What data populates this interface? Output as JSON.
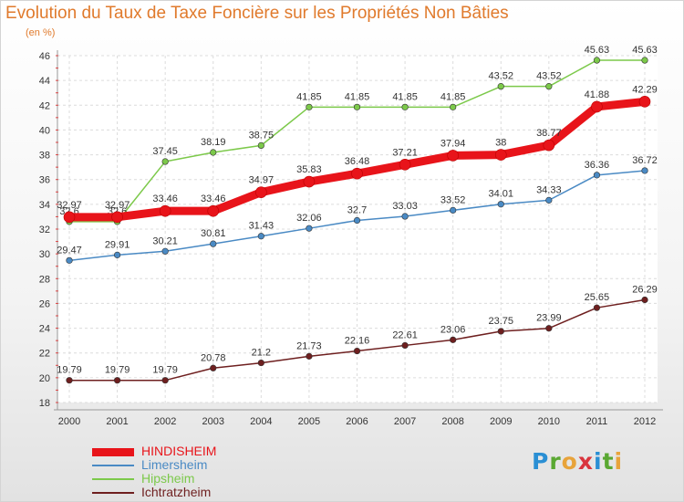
{
  "title": "Evolution du Taux de Taxe Foncière sur les Propriétés Non Bâties",
  "subtitle": "(en %)",
  "logo": [
    "P",
    "r",
    "o",
    "x",
    "i",
    "t",
    "i"
  ],
  "logo_colors": [
    "#2a8fd4",
    "#5aa832",
    "#e8a33a",
    "#d9343d",
    "#2a8fd4",
    "#5aa832",
    "#e8a33a"
  ],
  "chart_data": {
    "type": "line",
    "xlabel": "",
    "ylabel": "",
    "x": [
      "2000",
      "2001",
      "2002",
      "2003",
      "2004",
      "2005",
      "2006",
      "2007",
      "2008",
      "2009",
      "2010",
      "2011",
      "2012"
    ],
    "ylim": [
      18,
      46
    ],
    "yticks": [
      18,
      20,
      22,
      24,
      26,
      28,
      30,
      32,
      34,
      36,
      38,
      40,
      42,
      44,
      46
    ],
    "grid": true,
    "legend_placement": "bottom-left",
    "series": [
      {
        "name": "Ichtratzheim",
        "color": "#6e1f1f",
        "values": [
          19.79,
          19.79,
          19.79,
          20.78,
          21.2,
          21.73,
          22.16,
          22.61,
          23.06,
          23.75,
          23.99,
          25.65,
          26.29
        ],
        "labels": [
          "19.79",
          "19.79",
          "19.79",
          "20.78",
          "21.2",
          "21.73",
          "22.16",
          "22.61",
          "23.06",
          "23.75",
          "23.99",
          "25.65",
          "26.29"
        ]
      },
      {
        "name": "Limersheim",
        "color": "#4a8ac4",
        "values": [
          29.47,
          29.91,
          30.21,
          30.81,
          31.43,
          32.06,
          32.7,
          33.03,
          33.52,
          34.01,
          34.33,
          36.36,
          36.72
        ],
        "labels": [
          "29.47",
          "29.91",
          "30.21",
          "30.81",
          "31.43",
          "32.06",
          "32.7",
          "33.03",
          "33.52",
          "34.01",
          "34.33",
          "36.36",
          "36.72"
        ]
      },
      {
        "name": "Hipsheim",
        "color": "#7cc94a",
        "values": [
          32.6,
          32.6,
          37.45,
          38.19,
          38.75,
          41.85,
          41.85,
          41.85,
          41.85,
          43.52,
          43.52,
          45.63,
          45.63
        ],
        "labels": [
          "32.6",
          "32.6",
          "37.45",
          "38.19",
          "38.75",
          "41.85",
          "41.85",
          "41.85",
          "41.85",
          "43.52",
          "43.52",
          "45.63",
          "45.63"
        ]
      },
      {
        "name": "HINDISHEIM",
        "color": "#e8141a",
        "values": [
          32.97,
          32.97,
          33.46,
          33.46,
          34.97,
          35.83,
          36.48,
          37.21,
          37.94,
          38,
          38.77,
          41.88,
          42.29
        ],
        "labels": [
          "32.97",
          "32.97",
          "33.46",
          "33.46",
          "34.97",
          "35.83",
          "36.48",
          "37.21",
          "37.94",
          "38",
          "38.77",
          "41.88",
          "42.29"
        ]
      }
    ],
    "legend": [
      {
        "name": "HINDISHEIM",
        "color": "#e8141a"
      },
      {
        "name": "Limersheim",
        "color": "#4a8ac4"
      },
      {
        "name": "Hipsheim",
        "color": "#7cc94a"
      },
      {
        "name": "Ichtratzheim",
        "color": "#6e1f1f"
      }
    ]
  }
}
